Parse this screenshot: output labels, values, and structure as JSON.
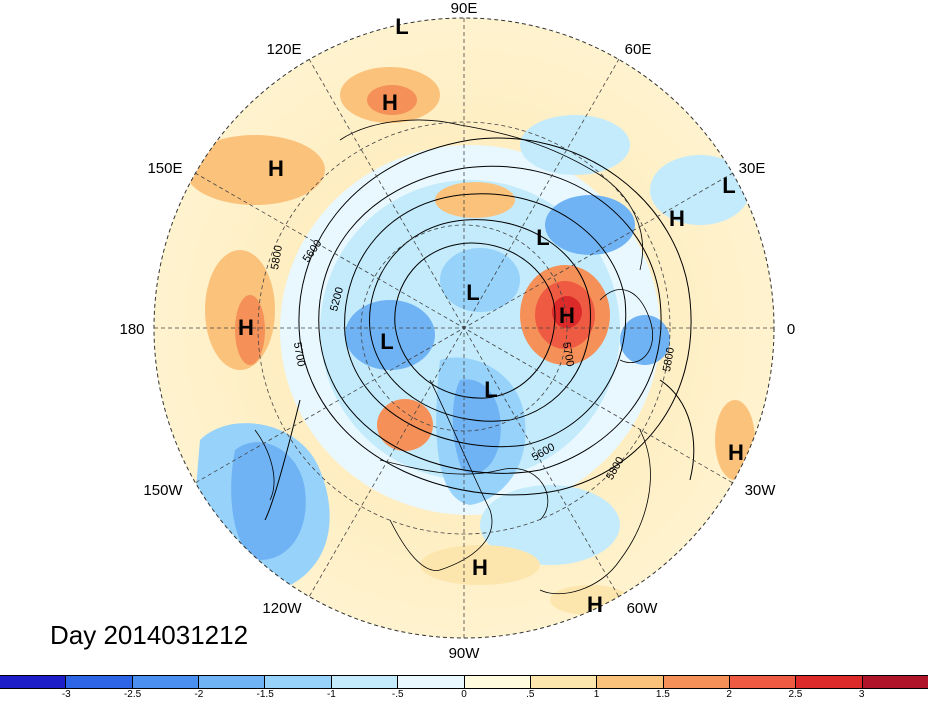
{
  "map": {
    "projection": "north polar stereographic",
    "field": "500 hPa geopotential height anomaly (shaded) with height contours",
    "date_label": "Day 2014031212",
    "longitude_labels": [
      "90E",
      "60E",
      "30E",
      "0",
      "30W",
      "60W",
      "90W",
      "120W",
      "150W",
      "180",
      "150E",
      "120E"
    ],
    "contour_labels": [
      "5800",
      "5600",
      "5200",
      "5700",
      "5700",
      "5600",
      "5800",
      "5800"
    ],
    "pressure_centers": [
      {
        "type": "L",
        "region": "Siberia north"
      },
      {
        "type": "H",
        "region": "Central Siberia"
      },
      {
        "type": "H",
        "region": "North Pacific west"
      },
      {
        "type": "L",
        "region": "Europe east"
      },
      {
        "type": "H",
        "region": "Europe south"
      },
      {
        "type": "L",
        "region": "Scandinavia"
      },
      {
        "type": "L",
        "region": "Arctic"
      },
      {
        "type": "H",
        "region": "North Atlantic"
      },
      {
        "type": "H",
        "region": "Central Pacific"
      },
      {
        "type": "L",
        "region": "Kamchatka"
      },
      {
        "type": "L",
        "region": "Canada"
      },
      {
        "type": "H",
        "region": "Atlantic subtropics"
      },
      {
        "type": "H",
        "region": "Caribbean"
      },
      {
        "type": "H",
        "region": "South America north"
      }
    ]
  },
  "colorbar": {
    "ticks": [
      "-3",
      "-2.5",
      "-2",
      "-1.5",
      "-1",
      "-.5",
      "0",
      ".5",
      "1",
      "1.5",
      "2",
      "2.5",
      "3"
    ],
    "colors": [
      "#1e1ec8",
      "#2e64e6",
      "#4b8ff0",
      "#6fb3f5",
      "#96d2fa",
      "#c3ebfc",
      "#e8f8fe",
      "#fffbdc",
      "#fde6ae",
      "#fbc27c",
      "#f59059",
      "#ef5a42",
      "#dc2a2a",
      "#b01428"
    ]
  }
}
